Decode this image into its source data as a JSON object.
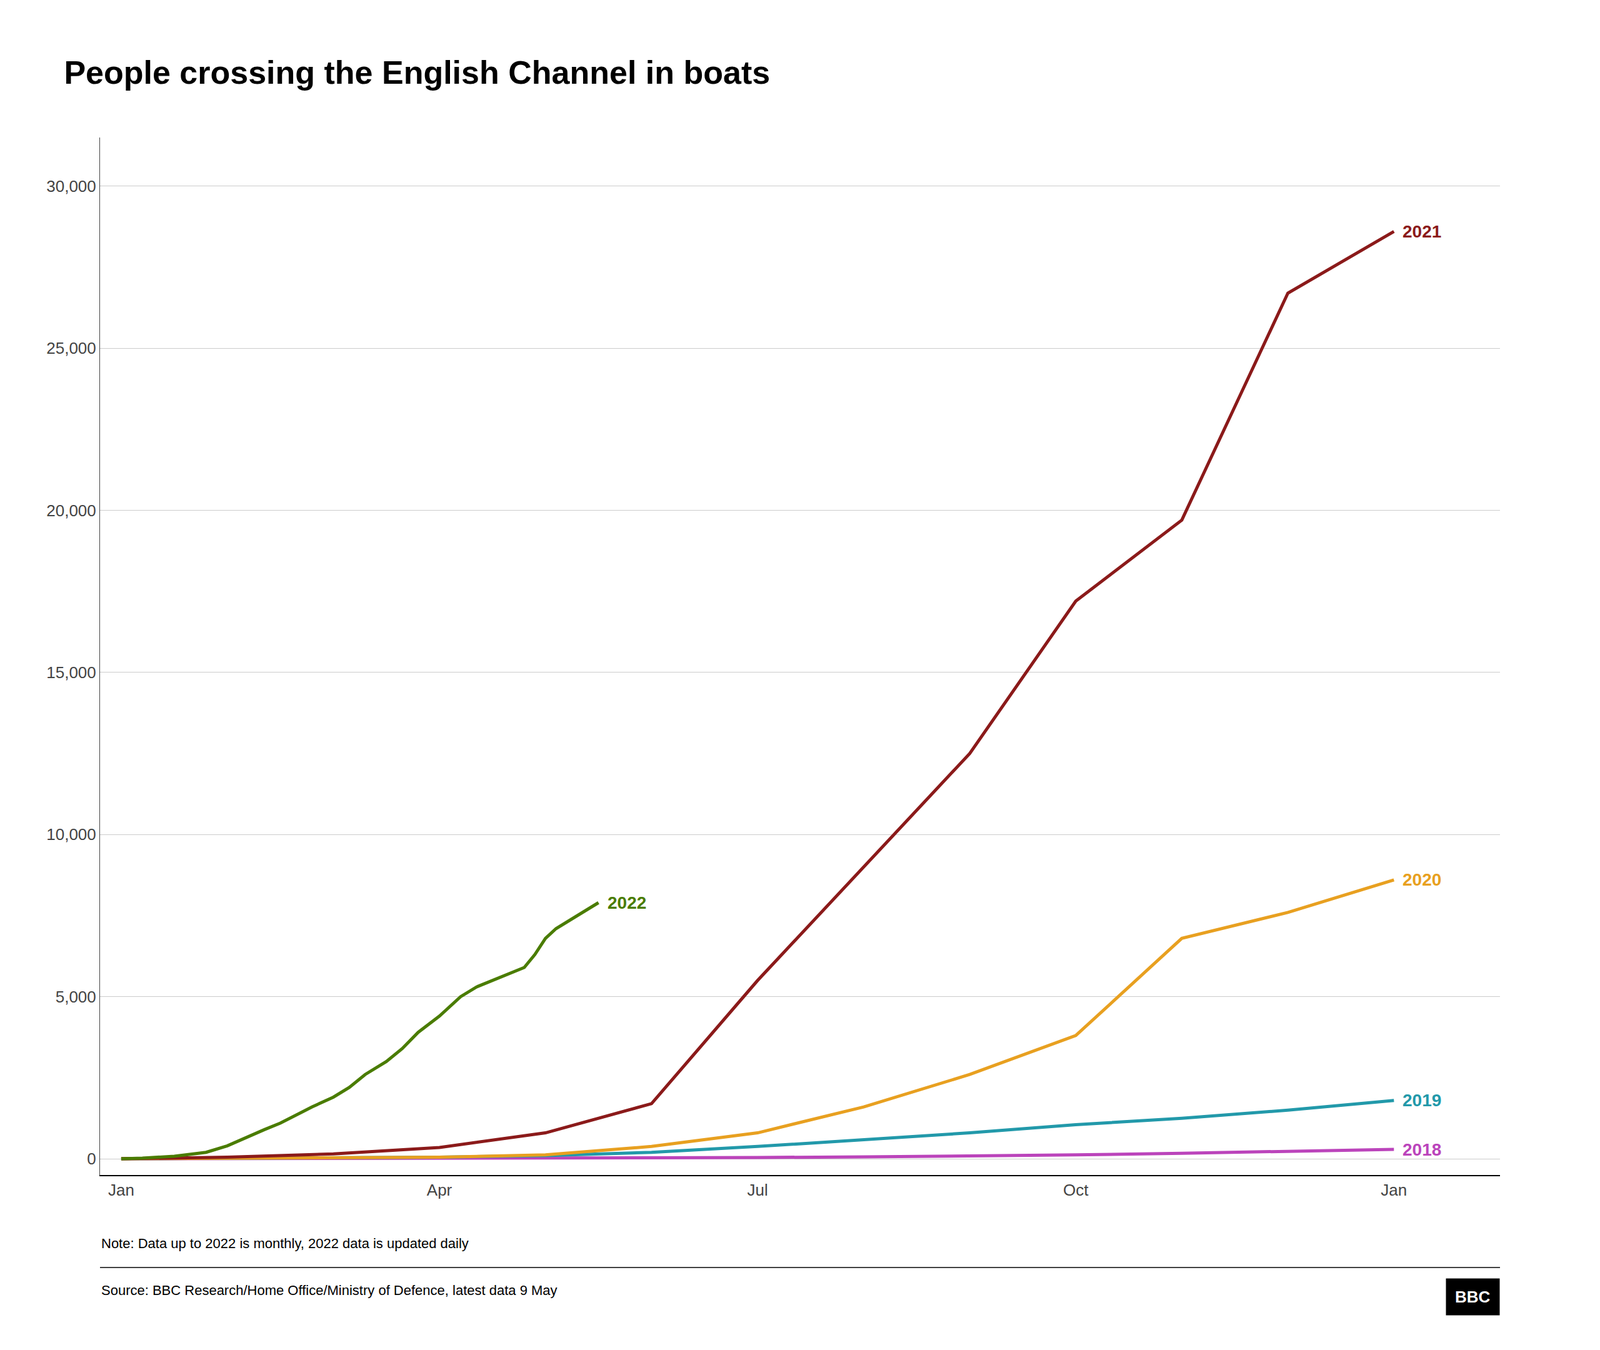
{
  "chart_data": {
    "type": "line",
    "title": "People crossing the English Channel in boats",
    "annotations": [
      "Note: Data up to 2022 is monthly, 2022 data is updated daily",
      "Source: BBC Research/Home Office/Ministry of Defence, latest data 9 May",
      "BBC"
    ],
    "xlim": [
      -0.2,
      13.0
    ],
    "xticks": [
      {
        "value": 0,
        "label": "Jan"
      },
      {
        "value": 3,
        "label": "Apr"
      },
      {
        "value": 6,
        "label": "Jul"
      },
      {
        "value": 9,
        "label": "Oct"
      },
      {
        "value": 12,
        "label": "Jan"
      }
    ],
    "ylim": [
      -500,
      31500
    ],
    "yticks": [
      0,
      {
        "value": 5000,
        "label": "5,000"
      },
      {
        "value": 10000,
        "label": "10,000"
      },
      {
        "value": 15000,
        "label": "15,000"
      },
      {
        "value": 20000,
        "label": "20,000"
      },
      {
        "value": 25000,
        "label": "25,000"
      },
      {
        "value": 30000,
        "label": "30,000"
      }
    ],
    "grid": true,
    "series": [
      {
        "name": "2018",
        "color": "#bb44bb",
        "x": [
          0,
          1,
          2,
          3,
          4,
          5,
          6,
          7,
          8,
          9,
          10,
          11,
          12
        ],
        "values": [
          0,
          5,
          10,
          15,
          20,
          30,
          40,
          60,
          80,
          120,
          170,
          230,
          290
        ]
      },
      {
        "name": "2019",
        "color": "#2299aa",
        "x": [
          0,
          1,
          2,
          3,
          4,
          5,
          6,
          7,
          8,
          9,
          10,
          11,
          12
        ],
        "values": [
          0,
          10,
          25,
          50,
          100,
          200,
          380,
          600,
          800,
          1050,
          1250,
          1500,
          1800
        ]
      },
      {
        "name": "2020",
        "color": "#e8a020",
        "x": [
          0,
          1,
          2,
          3,
          4,
          5,
          6,
          7,
          8,
          9,
          10,
          11,
          12
        ],
        "values": [
          0,
          10,
          20,
          50,
          120,
          380,
          800,
          1600,
          2600,
          3800,
          6800,
          7600,
          8600
        ]
      },
      {
        "name": "2021",
        "color": "#8b1a1a",
        "x": [
          0,
          1,
          2,
          3,
          4,
          5,
          6,
          7,
          8,
          9,
          10,
          11,
          12
        ],
        "values": [
          0,
          50,
          150,
          350,
          800,
          1700,
          5500,
          9000,
          12500,
          17200,
          19700,
          26700,
          28600
        ]
      },
      {
        "name": "2022",
        "color": "#4a7c00",
        "x": [
          0.0,
          0.2,
          0.5,
          0.8,
          1.0,
          1.1,
          1.2,
          1.35,
          1.5,
          1.65,
          1.8,
          2.0,
          2.15,
          2.3,
          2.5,
          2.65,
          2.8,
          3.0,
          3.1,
          3.2,
          3.35,
          3.5,
          3.65,
          3.8,
          3.9,
          4.0,
          4.1,
          4.2,
          4.35,
          4.5
        ],
        "values": [
          0,
          20,
          80,
          200,
          400,
          550,
          700,
          900,
          1100,
          1350,
          1600,
          1900,
          2200,
          2600,
          3000,
          3400,
          3900,
          4400,
          4700,
          5000,
          5300,
          5500,
          5700,
          5900,
          6300,
          6800,
          7100,
          7300,
          7600,
          7900
        ]
      }
    ]
  }
}
